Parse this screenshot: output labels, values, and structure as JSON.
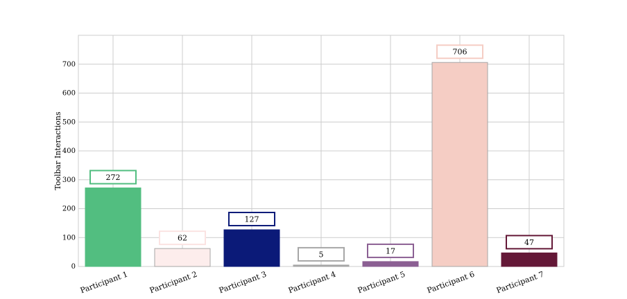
{
  "chart_data": {
    "type": "bar",
    "title": "",
    "xlabel": "",
    "ylabel": "Toolbar Interactions",
    "categories": [
      "Participant 1",
      "Participant 2",
      "Participant 3",
      "Participant 4",
      "Participant 5",
      "Participant 6",
      "Participant 7"
    ],
    "values": [
      272,
      62,
      127,
      5,
      17,
      706,
      47
    ],
    "colors": [
      "#52be80",
      "#fdedec",
      "#0b1a78",
      "#a6a6a6",
      "#8b5f93",
      "#f5cdc4",
      "#641837"
    ],
    "label_border_colors": [
      "#52be80",
      "#fbe3e2",
      "#0b1a78",
      "#a6a6a6",
      "#8b5f93",
      "#f5cdc4",
      "#641837"
    ],
    "ylim": [
      0,
      800
    ],
    "yticks": [
      0,
      100,
      200,
      300,
      400,
      500,
      600,
      700
    ],
    "grid": true,
    "legend": "none"
  }
}
